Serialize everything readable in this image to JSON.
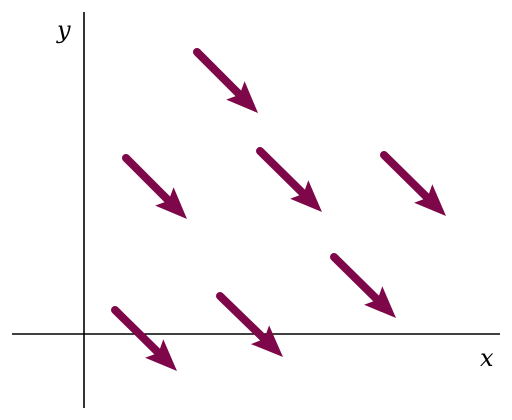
{
  "diagram": {
    "x_label": "x",
    "y_label": "y",
    "colors": {
      "vector": "#7d0748",
      "axis": "#000000"
    },
    "vector_count": 7
  }
}
